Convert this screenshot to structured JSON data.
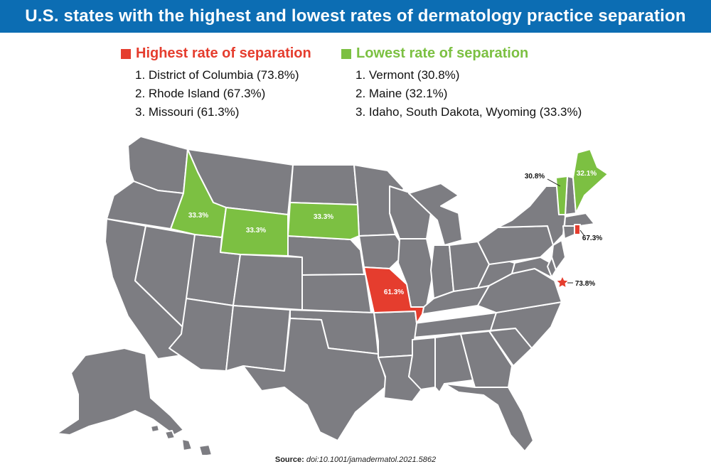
{
  "title": "U.S. states with the highest and lowest rates of dermatology practice separation",
  "colors": {
    "title_bg": "#0c6db3",
    "highest": "#e53d2e",
    "lowest": "#7cc042",
    "other_states": "#7d7d82",
    "state_border": "#ffffff"
  },
  "legend": {
    "highest": {
      "heading": "Highest rate of separation",
      "items": [
        "1. District of Columbia (73.8%)",
        "2. Rhode Island (67.3%)",
        "3. Missouri (61.3%)"
      ]
    },
    "lowest": {
      "heading": "Lowest rate of separation",
      "items": [
        "1. Vermont (30.8%)",
        "2. Maine (32.1%)",
        "3. Idaho, South Dakota, Wyoming (33.3%)"
      ]
    }
  },
  "map": {
    "state_labels": {
      "idaho": "33.3%",
      "wyoming": "33.3%",
      "south_dakota": "33.3%",
      "missouri": "61.3%",
      "vermont": "30.8%",
      "maine": "32.1%",
      "rhode_island": "67.3%",
      "dc": "73.8%"
    }
  },
  "source": {
    "label": "Source:",
    "citation": "doi:10.1001/jamadermatol.2021.5862"
  }
}
